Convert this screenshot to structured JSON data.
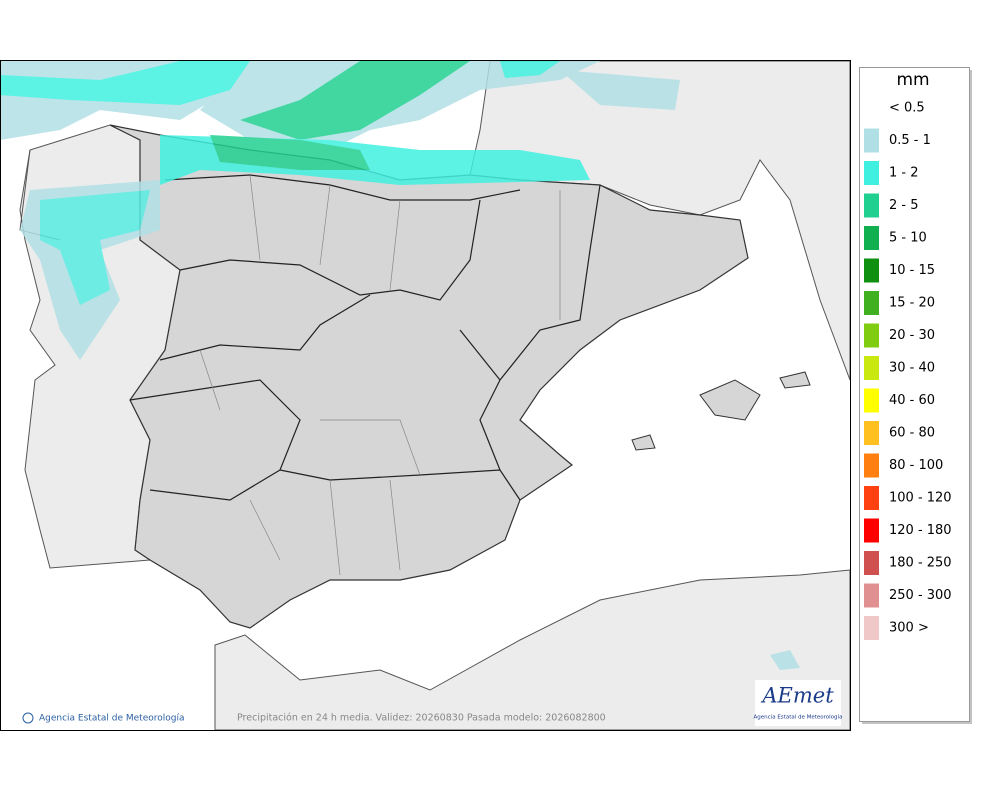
{
  "legend": {
    "title": "mm",
    "items": [
      {
        "label": "< 0.5"
      },
      {
        "label": "0.5 - 1",
        "color": "#b0e0e6"
      },
      {
        "label": "1 - 2",
        "color": "#3ff0e0"
      },
      {
        "label": "2 - 5",
        "color": "#20d090"
      },
      {
        "label": "5 - 10",
        "color": "#10b050"
      },
      {
        "label": "10 - 15",
        "color": "#109010"
      },
      {
        "label": "15 - 20",
        "color": "#40b020"
      },
      {
        "label": "20 - 30",
        "color": "#80cc10"
      },
      {
        "label": "30 - 40",
        "color": "#c8e810"
      },
      {
        "label": "40 - 60",
        "color": "#ffff00"
      },
      {
        "label": "60 - 80",
        "color": "#ffc020"
      },
      {
        "label": "80 - 100",
        "color": "#ff8010"
      },
      {
        "label": "100 - 120",
        "color": "#ff4010"
      },
      {
        "label": "120 - 180",
        "color": "#ff0000"
      },
      {
        "label": "180 - 250",
        "color": "#d05050"
      },
      {
        "label": "250 - 300",
        "color": "#e09090"
      },
      {
        "label": "300 >",
        "color": "#f0c8c8"
      }
    ]
  },
  "footer": {
    "credit": "Agencia Estatal de Meteorología",
    "caption": "Precipitación en 24 h media. Validez: 20260830 Pasada modelo: 2026082800"
  },
  "logo": {
    "name": "AEmet",
    "subtitle": "Agencia Estatal de Meteorología"
  }
}
